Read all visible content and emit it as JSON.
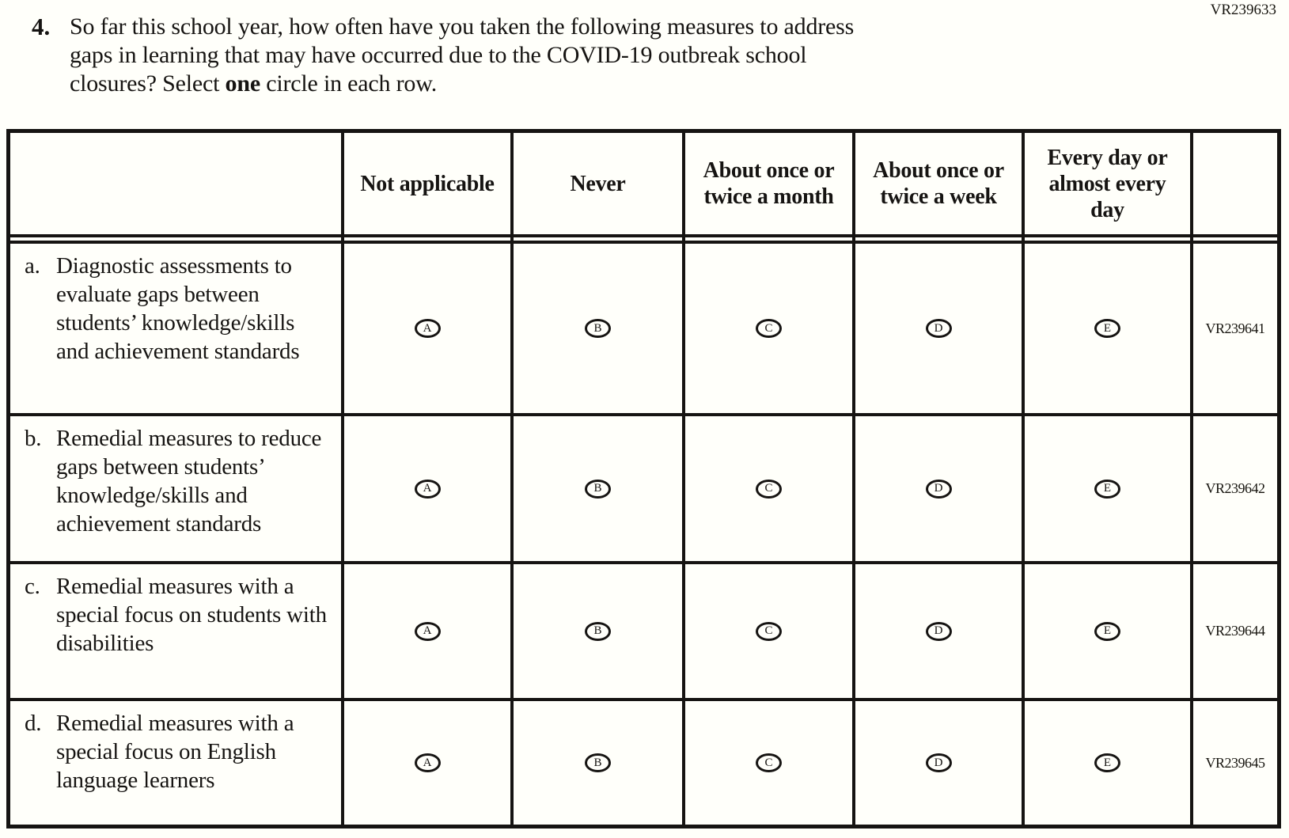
{
  "header_code": "VR239633",
  "question": {
    "number": "4.",
    "line1": "So far this school year, how often have you taken the following measures to address",
    "line2": "gaps in learning that may have occurred due to the COVID-19 outbreak school",
    "line3_before": "closures? Select ",
    "line3_bold": "one",
    "line3_after": " circle in each row."
  },
  "table": {
    "column_headers": [
      "Not applicable",
      "Never",
      "About once or twice a month",
      "About once or twice a week",
      "Every day or almost every day"
    ],
    "options": [
      "A",
      "B",
      "C",
      "D",
      "E"
    ],
    "rows": [
      {
        "letter": "a.",
        "label": "Diagnostic assessments to evaluate gaps between students’ knowledge/skills and achievement standards",
        "code": "VR239641"
      },
      {
        "letter": "b.",
        "label": "Remedial measures to reduce gaps between students’ knowledge/skills and achievement standards",
        "code": "VR239642"
      },
      {
        "letter": "c.",
        "label": "Remedial measures with a special focus on students with disabilities",
        "code": "VR239644"
      },
      {
        "letter": "d.",
        "label": "Remedial measures with a special focus on English language learners",
        "code": "VR239645"
      }
    ]
  }
}
